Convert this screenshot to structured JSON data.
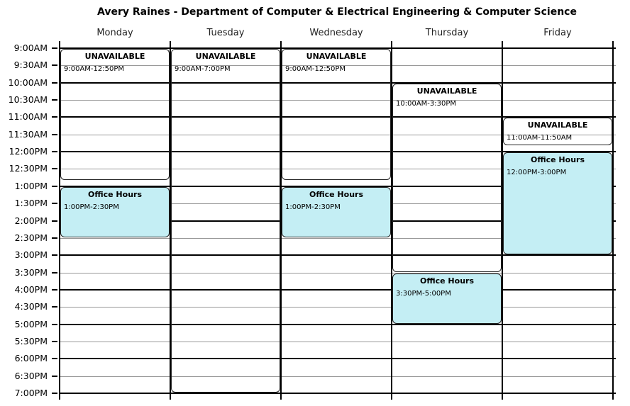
{
  "title": "Avery Raines - Department of Computer & Electrical Engineering & Computer Science",
  "days": [
    "Monday",
    "Tuesday",
    "Wednesday",
    "Thursday",
    "Friday"
  ],
  "time_slots": [
    "9:00AM",
    "9:30AM",
    "10:00AM",
    "10:30AM",
    "11:00AM",
    "11:30AM",
    "12:00PM",
    "12:30PM",
    "1:00PM",
    "1:30PM",
    "2:00PM",
    "2:30PM",
    "3:00PM",
    "3:30PM",
    "4:00PM",
    "4:30PM",
    "5:00PM",
    "5:30PM",
    "6:00PM",
    "6:30PM",
    "7:00PM"
  ],
  "colors": {
    "unavailable": "#d25c51",
    "office_hours": "#c4eef4"
  },
  "events": [
    {
      "day": 0,
      "title": "UNAVAILABLE",
      "time": "9:00AM-12:50PM",
      "start_min": 540,
      "end_min": 770,
      "kind": "unavailable"
    },
    {
      "day": 0,
      "title": "Office Hours",
      "time": "1:00PM-2:30PM",
      "start_min": 780,
      "end_min": 870,
      "kind": "office"
    },
    {
      "day": 1,
      "title": "UNAVAILABLE",
      "time": "9:00AM-7:00PM",
      "start_min": 540,
      "end_min": 1140,
      "kind": "unavailable"
    },
    {
      "day": 2,
      "title": "UNAVAILABLE",
      "time": "9:00AM-12:50PM",
      "start_min": 540,
      "end_min": 770,
      "kind": "unavailable"
    },
    {
      "day": 2,
      "title": "Office Hours",
      "time": "1:00PM-2:30PM",
      "start_min": 780,
      "end_min": 870,
      "kind": "office"
    },
    {
      "day": 3,
      "title": "UNAVAILABLE",
      "time": "10:00AM-3:30PM",
      "start_min": 600,
      "end_min": 930,
      "kind": "unavailable"
    },
    {
      "day": 3,
      "title": "Office Hours",
      "time": "3:30PM-5:00PM",
      "start_min": 930,
      "end_min": 1020,
      "kind": "office"
    },
    {
      "day": 4,
      "title": "UNAVAILABLE",
      "time": "11:00AM-11:50AM",
      "start_min": 660,
      "end_min": 710,
      "kind": "unavailable"
    },
    {
      "day": 4,
      "title": "Office Hours",
      "time": "12:00PM-3:00PM",
      "start_min": 720,
      "end_min": 900,
      "kind": "office"
    }
  ]
}
